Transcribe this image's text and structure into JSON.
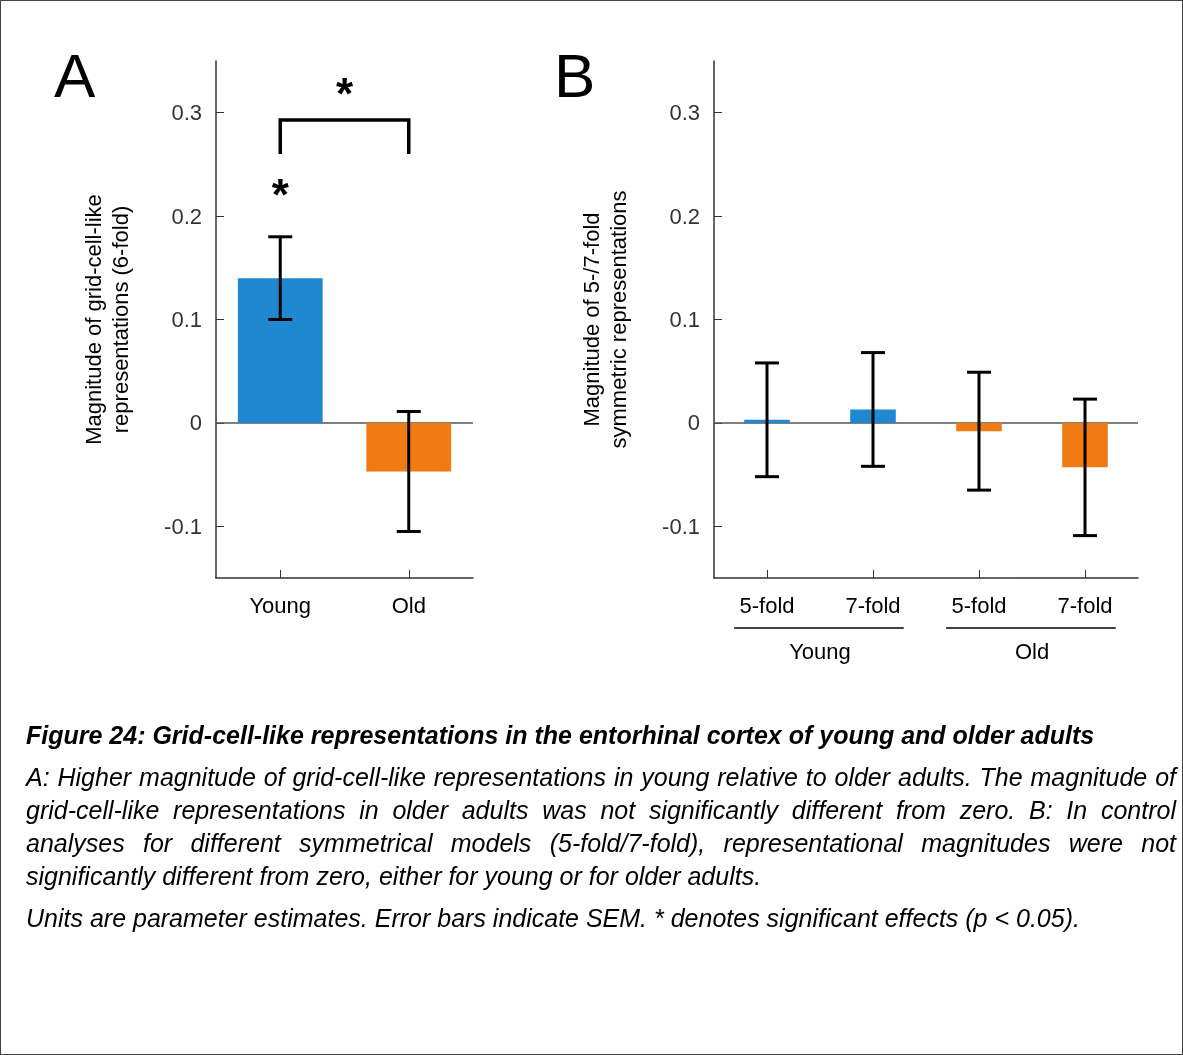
{
  "chart_data": [
    {
      "type": "bar",
      "title": "A",
      "ylabel": "Magnitude of grid-cell-like representations (6-fold)",
      "categories": [
        "Young",
        "Old"
      ],
      "values": [
        0.14,
        -0.047
      ],
      "colors": [
        "#1f88d0",
        "#f07b12"
      ],
      "errors": [
        0.04,
        0.058
      ],
      "ylim": [
        -0.15,
        0.35
      ],
      "yticks": [
        -0.1,
        0,
        0.1,
        0.2,
        0.3
      ],
      "ref_lines": [
        {
          "axis": "y",
          "value": 0
        }
      ],
      "annotations": [
        "*",
        "*",
        "Figure 24: Grid-cell-like representations in the entorhinal cortex of young and older adults",
        "A: Higher magnitude of grid-cell-like representations in young relative to older adults. The magnitude of grid-cell-like representations in older adults was not significantly different from zero. B: In control analyses for different symmetrical models (5-fold/7-fold), representational magnitudes were not significantly different from zero, either for young or for older adults.",
        "Units are parameter estimates. Error bars indicate SEM. * denotes significant effects (p < 0.05)."
      ]
    },
    {
      "type": "bar",
      "title": "B",
      "ylabel": "Magnitude of 5-/7-fold symmetric representations",
      "categories": [
        "5-fold",
        "7-fold",
        "5-fold",
        "7-fold"
      ],
      "values": [
        0.003,
        0.013,
        -0.008,
        -0.043
      ],
      "colors": [
        "#1f88d0",
        "#1f88d0",
        "#f07b12",
        "#f07b12"
      ],
      "errors": [
        0.055,
        0.055,
        0.057,
        0.066
      ],
      "ylim": [
        -0.15,
        0.35
      ],
      "yticks": [
        -0.1,
        0,
        0.1,
        0.2,
        0.3
      ],
      "ref_lines": [
        {
          "axis": "y",
          "value": 0
        }
      ],
      "annotations": [
        "Young",
        "Old"
      ]
    }
  ]
}
